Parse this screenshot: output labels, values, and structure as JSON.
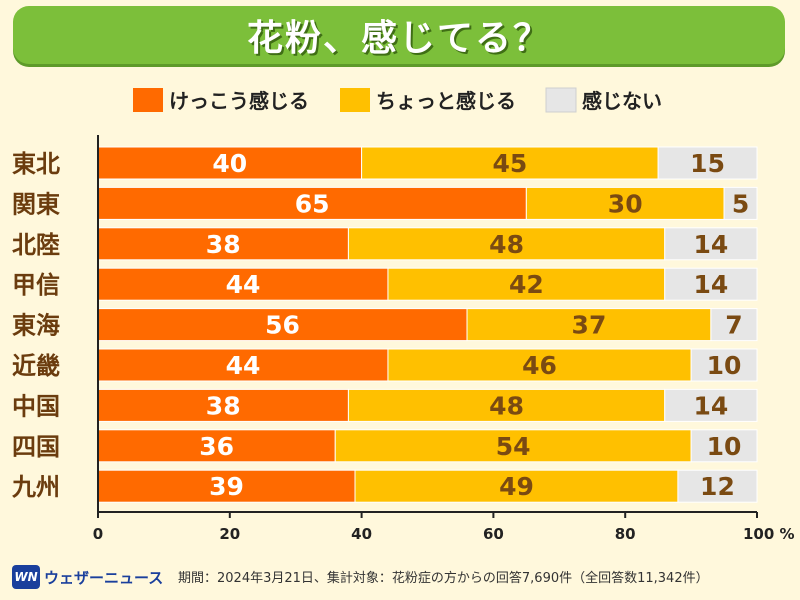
{
  "colors": {
    "series": [
      "#ff6a00",
      "#ffc000",
      "#e6e6e6"
    ],
    "value_text": [
      "#ffffff",
      "#7a4a12",
      "#7a4a12"
    ],
    "region_text": "#6b3c0e"
  },
  "logo": {
    "mark": "WN",
    "name": "ウェザーニュース"
  },
  "footer": {
    "note": "期間：2024年3月21日、集計対象：花粉症の方からの回答7,690件（全回答数11,342件）"
  },
  "chart_data": {
    "type": "bar",
    "orientation": "horizontal",
    "stacked": true,
    "title": "花粉、感じてる？",
    "categories": [
      "東北",
      "関東",
      "北陸",
      "甲信",
      "東海",
      "近畿",
      "中国",
      "四国",
      "九州"
    ],
    "series": [
      {
        "name": "けっこう感じる",
        "values": [
          40,
          65,
          38,
          44,
          56,
          44,
          38,
          36,
          39
        ]
      },
      {
        "name": "ちょっと感じる",
        "values": [
          45,
          30,
          48,
          42,
          37,
          46,
          48,
          54,
          49
        ]
      },
      {
        "name": "感じない",
        "values": [
          15,
          5,
          14,
          14,
          7,
          10,
          14,
          10,
          12
        ]
      }
    ],
    "xlim": [
      0,
      100
    ],
    "xticks": [
      0,
      20,
      40,
      60,
      80,
      100
    ],
    "xtick_labels": [
      "0",
      "20",
      "40",
      "60",
      "80",
      "100 %"
    ],
    "legend_position": "top-center",
    "grid": false
  }
}
